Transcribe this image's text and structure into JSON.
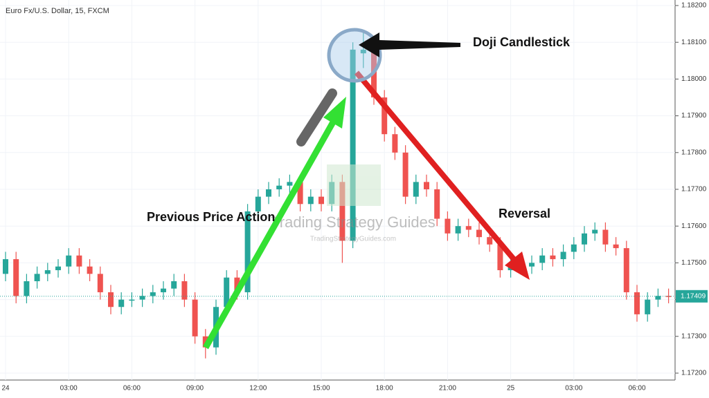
{
  "chart_data": {
    "type": "candlestick",
    "title": "Euro Fx/U.S. Dollar, 15, FXCM",
    "up_color": "#26a69a",
    "down_color": "#ef5350",
    "categories": [
      "24",
      null,
      null,
      null,
      null,
      null,
      "03:00",
      null,
      null,
      null,
      null,
      null,
      "06:00",
      null,
      null,
      null,
      null,
      null,
      "09:00",
      null,
      null,
      null,
      null,
      null,
      "12:00",
      null,
      null,
      null,
      null,
      null,
      "15:00",
      null,
      null,
      null,
      null,
      null,
      "18:00",
      null,
      null,
      null,
      null,
      null,
      "21:00",
      null,
      null,
      null,
      null,
      null,
      "25",
      null,
      null,
      null,
      null,
      null,
      "03:00",
      null,
      null,
      null,
      null,
      null,
      "06:00",
      null,
      null,
      null
    ],
    "open": [
      1.1747,
      1.1751,
      1.1741,
      1.1745,
      1.1747,
      1.1748,
      1.1749,
      1.1752,
      1.1749,
      1.1747,
      1.1742,
      1.1738,
      1.174,
      1.174,
      1.1741,
      1.1742,
      1.1743,
      1.1745,
      1.174,
      1.173,
      1.1727,
      1.1738,
      1.1746,
      1.1742,
      1.1764,
      1.1768,
      1.177,
      1.1771,
      1.1772,
      1.1766,
      1.1768,
      1.1766,
      1.1772,
      1.1756,
      1.1807,
      1.1808,
      1.1795,
      1.1785,
      1.178,
      1.1768,
      1.1772,
      1.177,
      1.1762,
      1.1758,
      1.176,
      1.1759,
      1.1757,
      1.1755,
      1.1748,
      1.175,
      1.1749,
      1.175,
      1.1752,
      1.1751,
      1.1753,
      1.1755,
      1.1758,
      1.1759,
      1.1755,
      1.1754,
      1.1742,
      1.1736,
      1.174,
      1.1741
    ],
    "high": [
      1.1753,
      1.1753,
      1.1747,
      1.1749,
      1.175,
      1.1751,
      1.1754,
      1.1754,
      1.1751,
      1.1749,
      1.1744,
      1.1742,
      1.1742,
      1.1743,
      1.1744,
      1.1745,
      1.1747,
      1.1747,
      1.1742,
      1.1732,
      1.174,
      1.1748,
      1.1748,
      1.1766,
      1.177,
      1.1772,
      1.1773,
      1.1774,
      1.1774,
      1.177,
      1.177,
      1.1774,
      1.1774,
      1.181,
      1.1813,
      1.181,
      1.1797,
      1.1787,
      1.1782,
      1.1774,
      1.1774,
      1.1772,
      1.1764,
      1.1762,
      1.1762,
      1.1761,
      1.1759,
      1.1757,
      1.1752,
      1.1752,
      1.1752,
      1.1754,
      1.1754,
      1.1755,
      1.1757,
      1.176,
      1.1761,
      1.1761,
      1.1757,
      1.1756,
      1.1744,
      1.1742,
      1.1743,
      1.1743
    ],
    "low": [
      1.1745,
      1.1739,
      1.1739,
      1.1743,
      1.1745,
      1.1746,
      1.1747,
      1.1747,
      1.1745,
      1.174,
      1.1736,
      1.1736,
      1.1738,
      1.1738,
      1.1739,
      1.174,
      1.1741,
      1.1738,
      1.1728,
      1.1724,
      1.1725,
      1.1736,
      1.174,
      1.174,
      1.1762,
      1.1766,
      1.1768,
      1.1769,
      1.1764,
      1.1764,
      1.1764,
      1.1764,
      1.175,
      1.1754,
      1.1803,
      1.1793,
      1.1783,
      1.1778,
      1.1766,
      1.1766,
      1.1768,
      1.176,
      1.1756,
      1.1756,
      1.1757,
      1.1755,
      1.1753,
      1.1746,
      1.1746,
      1.1747,
      1.1747,
      1.1748,
      1.1749,
      1.1749,
      1.1751,
      1.1753,
      1.1756,
      1.1753,
      1.1752,
      1.174,
      1.1734,
      1.1734,
      1.1738,
      1.1739
    ],
    "close": [
      1.1751,
      1.1741,
      1.1745,
      1.1747,
      1.1748,
      1.1749,
      1.1752,
      1.1749,
      1.1747,
      1.1742,
      1.1738,
      1.174,
      1.174,
      1.1741,
      1.1742,
      1.1743,
      1.1745,
      1.174,
      1.173,
      1.1727,
      1.1738,
      1.1746,
      1.1742,
      1.1764,
      1.1768,
      1.177,
      1.1771,
      1.1772,
      1.1766,
      1.1768,
      1.1766,
      1.1772,
      1.1756,
      1.1808,
      1.1808,
      1.1795,
      1.1785,
      1.178,
      1.1768,
      1.1772,
      1.177,
      1.1762,
      1.1758,
      1.176,
      1.1759,
      1.1757,
      1.1755,
      1.1748,
      1.175,
      1.1749,
      1.175,
      1.1752,
      1.1751,
      1.1753,
      1.1755,
      1.1758,
      1.1759,
      1.1755,
      1.1754,
      1.1742,
      1.1736,
      1.174,
      1.1741,
      1.17409
    ],
    "ylim": [
      1.1719,
      1.1821
    ],
    "yticks": [
      {
        "value": 1.172,
        "label": "1.17200"
      },
      {
        "value": 1.173,
        "label": "1.17300"
      },
      {
        "value": 1.174,
        "label": "1.17400"
      },
      {
        "value": 1.175,
        "label": "1.17500"
      },
      {
        "value": 1.176,
        "label": "1.17600"
      },
      {
        "value": 1.177,
        "label": "1.17700"
      },
      {
        "value": 1.178,
        "label": "1.17800"
      },
      {
        "value": 1.179,
        "label": "1.17900"
      },
      {
        "value": 1.18,
        "label": "1.18000"
      },
      {
        "value": 1.181,
        "label": "1.18100"
      },
      {
        "value": 1.182,
        "label": "1.18200"
      }
    ],
    "last_price": 1.17409,
    "annotations": {
      "doji": "Doji Candlestick",
      "previous": "Previous Price Action",
      "reversal": "Reversal"
    },
    "watermark": "Trading Strategy Guides",
    "watermark_url": "TradingStrategyGuides.com"
  }
}
